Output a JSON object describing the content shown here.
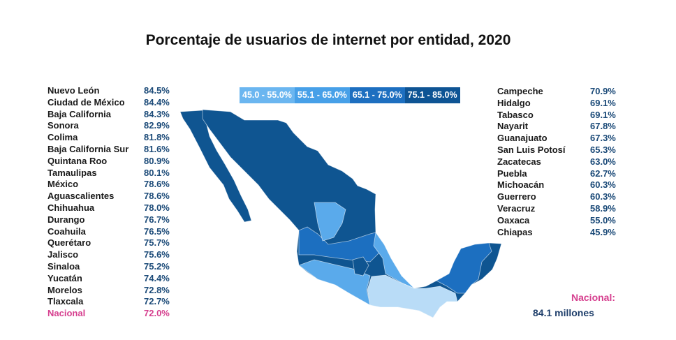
{
  "title": "Porcentaje de usuarios de internet por entidad, 2020",
  "legend": [
    {
      "label": "45.0 - 55.0%",
      "color": "#6bb6f0"
    },
    {
      "label": "55.1 - 65.0%",
      "color": "#47a0e8"
    },
    {
      "label": "65.1 - 75.0%",
      "color": "#1d6fc0"
    },
    {
      "label": "75.1 - 85.0%",
      "color": "#0e5494"
    }
  ],
  "map_colors": {
    "tier1": "#b9dcf7",
    "tier2": "#5aaaeb",
    "tier3": "#1c6fc0",
    "tier4": "#0f5591"
  },
  "left_list": [
    {
      "name": "Nuevo León",
      "value": "84.5%"
    },
    {
      "name": "Ciudad de México",
      "value": "84.4%"
    },
    {
      "name": "Baja California",
      "value": "84.3%"
    },
    {
      "name": "Sonora",
      "value": "82.9%"
    },
    {
      "name": "Colima",
      "value": "81.8%"
    },
    {
      "name": "Baja California Sur",
      "value": "81.6%"
    },
    {
      "name": "Quintana Roo",
      "value": "80.9%"
    },
    {
      "name": "Tamaulipas",
      "value": "80.1%"
    },
    {
      "name": "México",
      "value": "78.6%"
    },
    {
      "name": "Aguascalientes",
      "value": "78.6%"
    },
    {
      "name": "Chihuahua",
      "value": "78.0%"
    },
    {
      "name": "Durango",
      "value": "76.7%"
    },
    {
      "name": "Coahuila",
      "value": "76.5%"
    },
    {
      "name": "Querétaro",
      "value": "75.7%"
    },
    {
      "name": "Jalisco",
      "value": "75.6%"
    },
    {
      "name": "Sinaloa",
      "value": "75.2%"
    },
    {
      "name": "Yucatán",
      "value": "74.4%"
    },
    {
      "name": "Morelos",
      "value": "72.8%"
    },
    {
      "name": "Tlaxcala",
      "value": "72.7%"
    },
    {
      "name": "Nacional",
      "value": "72.0%"
    }
  ],
  "right_list": [
    {
      "name": "Campeche",
      "value": "70.9%"
    },
    {
      "name": "Hidalgo",
      "value": "69.1%"
    },
    {
      "name": "Tabasco",
      "value": "69.1%"
    },
    {
      "name": "Nayarit",
      "value": "67.8%"
    },
    {
      "name": "Guanajuato",
      "value": "67.3%"
    },
    {
      "name": "San Luis Potosí",
      "value": "65.3%"
    },
    {
      "name": "Zacatecas",
      "value": "63.0%"
    },
    {
      "name": "Puebla",
      "value": "62.7%"
    },
    {
      "name": "Michoacán",
      "value": "60.3%"
    },
    {
      "name": "Guerrero",
      "value": "60.3%"
    },
    {
      "name": "Veracruz",
      "value": "58.9%"
    },
    {
      "name": "Oaxaca",
      "value": "55.0%"
    },
    {
      "name": "Chiapas",
      "value": "45.9%"
    }
  ],
  "national": {
    "label": "Nacional:",
    "value": "84.1 millones"
  }
}
